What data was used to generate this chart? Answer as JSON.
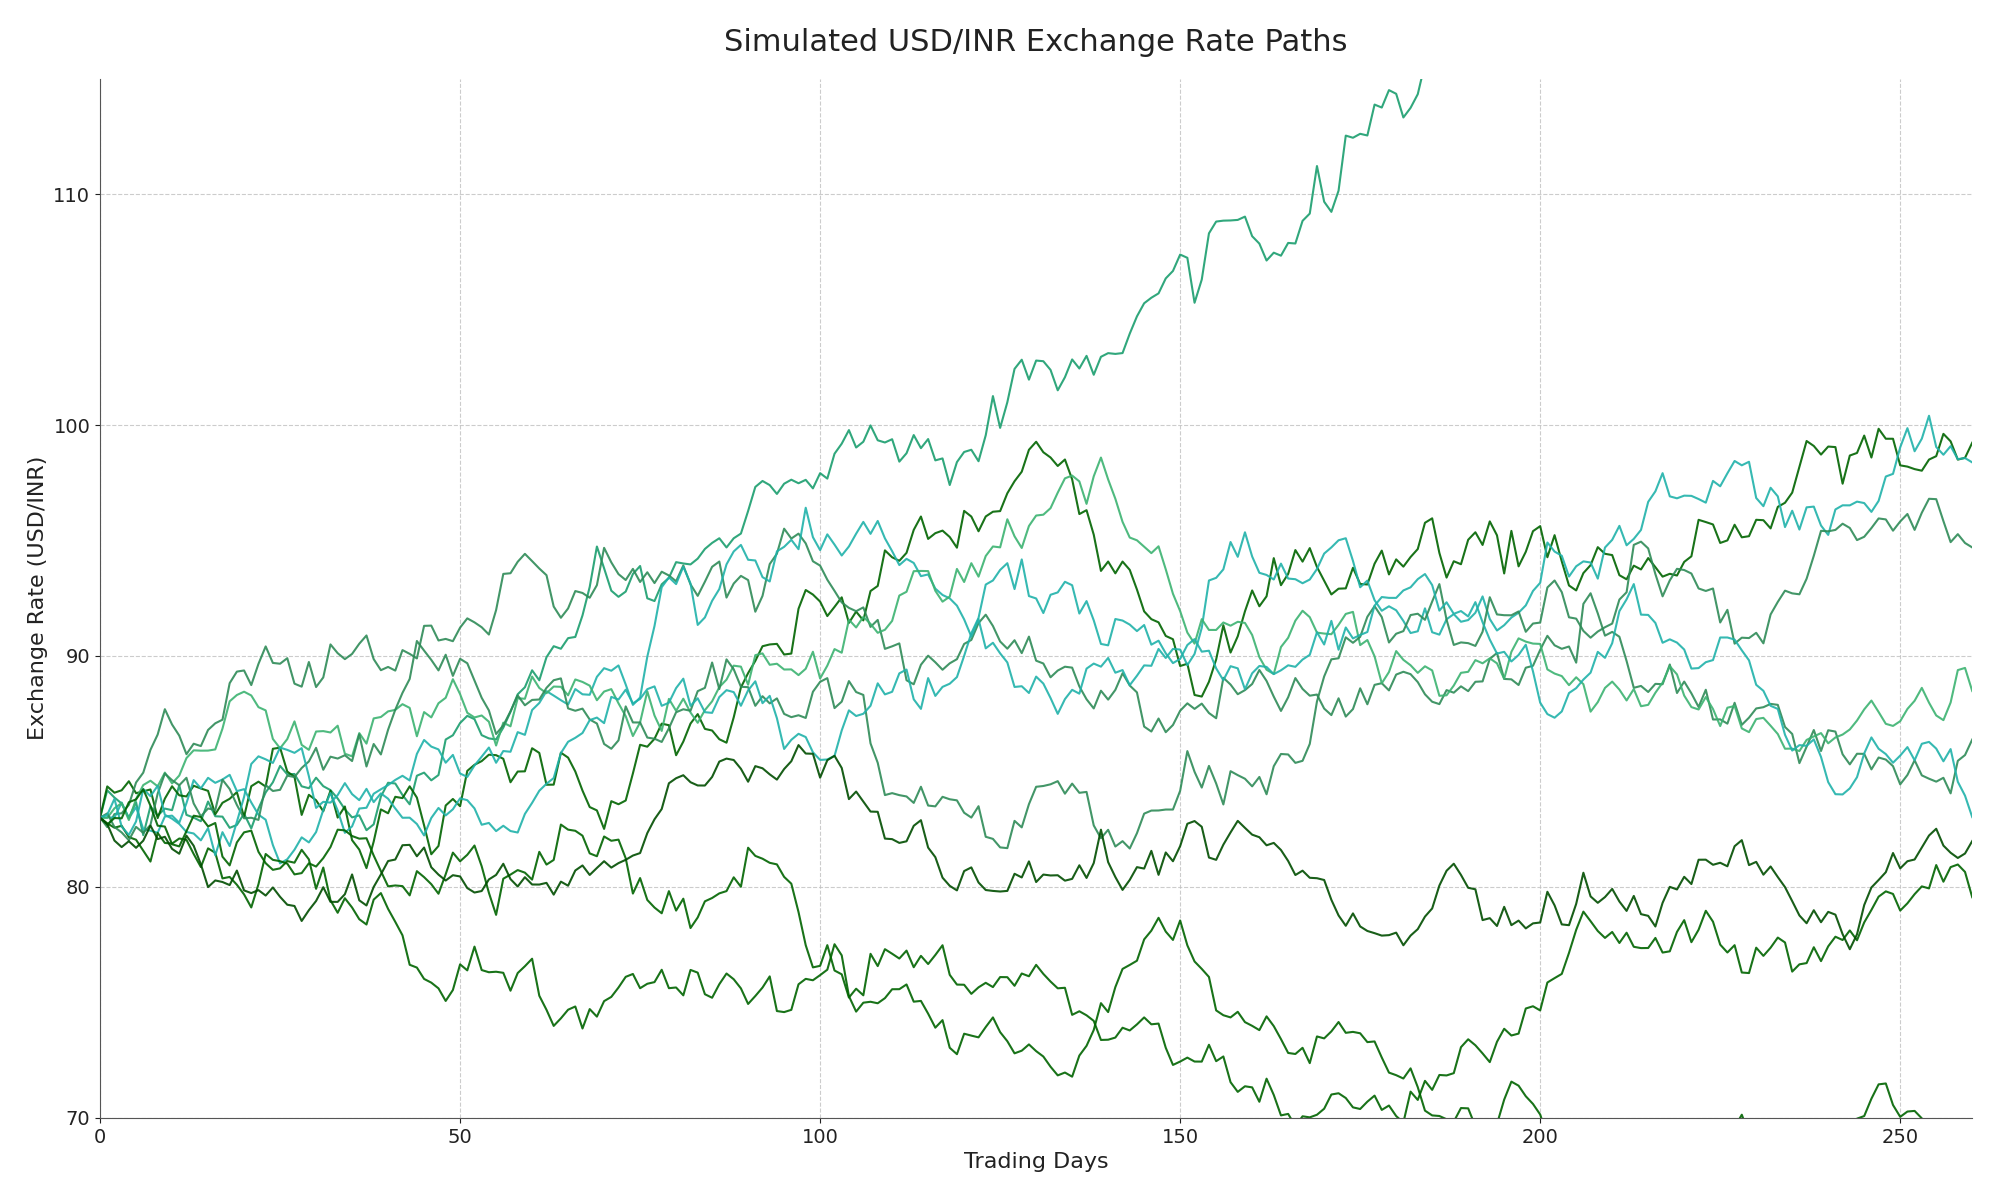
{
  "title": "Simulated USD/INR Exchange Rate Paths",
  "xlabel": "Trading Days",
  "ylabel": "Exchange Rate (USD/INR)",
  "ylim": [
    70,
    115
  ],
  "xlim": [
    0,
    260
  ],
  "num_paths": 10,
  "num_steps": 260,
  "S0": 83.0,
  "title_fontsize": 22,
  "label_fontsize": 16,
  "tick_fontsize": 14,
  "line_alpha": 0.9,
  "line_width": 1.5,
  "background_color": "#ffffff",
  "grid_color": "#c0c0c0",
  "path_params": [
    {
      "mu": 0.0012,
      "sigma": 0.008,
      "seed": 1,
      "color": "#1a9e6e"
    },
    {
      "mu": 0.001,
      "sigma": 0.009,
      "seed": 7,
      "color": "#006400"
    },
    {
      "mu": 0.0008,
      "sigma": 0.008,
      "seed": 13,
      "color": "#2E8B57"
    },
    {
      "mu": 0.0006,
      "sigma": 0.007,
      "seed": 21,
      "color": "#20B2AA"
    },
    {
      "mu": 0.0004,
      "sigma": 0.008,
      "seed": 31,
      "color": "#006400"
    },
    {
      "mu": 0.0003,
      "sigma": 0.007,
      "seed": 37,
      "color": "#3CB371"
    },
    {
      "mu": 0.0002,
      "sigma": 0.008,
      "seed": 43,
      "color": "#2E8B57"
    },
    {
      "mu": 0.0001,
      "sigma": 0.007,
      "seed": 53,
      "color": "#20B2AA"
    },
    {
      "mu": -0.0001,
      "sigma": 0.008,
      "seed": 61,
      "color": "#006400"
    },
    {
      "mu": -0.0003,
      "sigma": 0.007,
      "seed": 71,
      "color": "#004d00"
    }
  ],
  "yticks": [
    70,
    80,
    90,
    100,
    110
  ],
  "xticks": [
    0,
    50,
    100,
    150,
    200,
    250
  ]
}
